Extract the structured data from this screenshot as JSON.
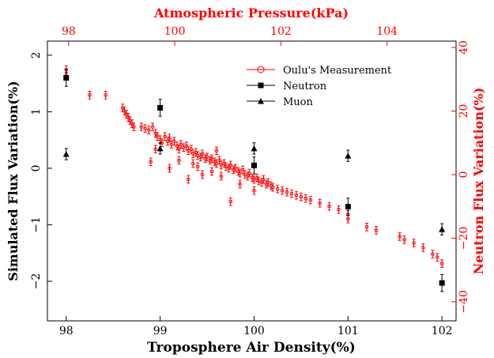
{
  "chart_data": {
    "type": "scatter",
    "title": "",
    "xlabel": "Troposphere Air Density(%)",
    "ylabel": "Simulated Flux Variation(%)",
    "x2label": "Atmospheric Pressure(kPa)",
    "y2label": "Neutron Flux Variation(%)",
    "xlim": [
      97.8,
      102.15
    ],
    "ylim": [
      -2.7,
      2.25
    ],
    "x2lim": [
      97.6,
      105.3
    ],
    "y2lim": [
      -46,
      42
    ],
    "x_ticks": [
      "98",
      "99",
      "100",
      "101",
      "102"
    ],
    "y_ticks": [
      "2",
      "1",
      "0",
      "−1",
      "−2"
    ],
    "x2_ticks": [
      "98",
      "100",
      "102",
      "104"
    ],
    "y2_ticks": [
      "40",
      "20",
      "0",
      "−20",
      "−40"
    ],
    "legend_position": "top-right",
    "grid": false,
    "colors": {
      "oulu": "#ff0000",
      "sim": "#000000"
    },
    "series": [
      {
        "name": "Oulu's Measurement",
        "axis": "secondary",
        "marker": "open-circle",
        "error": 1.2,
        "points": [
          [
            98.0,
            33.0
          ],
          [
            98.0,
            31.0
          ],
          [
            98.25,
            25.0
          ],
          [
            98.42,
            25.0
          ],
          [
            98.6,
            21.0
          ],
          [
            98.62,
            20.0
          ],
          [
            98.64,
            19.0
          ],
          [
            98.66,
            18.0
          ],
          [
            98.68,
            17.0
          ],
          [
            98.7,
            16.0
          ],
          [
            98.72,
            15.0
          ],
          [
            98.8,
            15.0
          ],
          [
            98.84,
            14.5
          ],
          [
            98.88,
            14.0
          ],
          [
            98.92,
            15.0
          ],
          [
            98.95,
            13.0
          ],
          [
            98.97,
            12.0
          ],
          [
            99.0,
            11.0
          ],
          [
            99.02,
            10.0
          ],
          [
            99.05,
            12.0
          ],
          [
            99.08,
            10.5
          ],
          [
            99.1,
            11.5
          ],
          [
            99.12,
            9.5
          ],
          [
            99.15,
            10.5
          ],
          [
            99.18,
            9.0
          ],
          [
            99.2,
            8.0
          ],
          [
            99.22,
            9.5
          ],
          [
            99.25,
            8.5
          ],
          [
            99.28,
            9.0
          ],
          [
            99.3,
            7.5
          ],
          [
            99.33,
            8.0
          ],
          [
            99.35,
            6.5
          ],
          [
            99.38,
            7.0
          ],
          [
            99.4,
            6.0
          ],
          [
            99.43,
            5.5
          ],
          [
            99.45,
            6.5
          ],
          [
            99.48,
            5.0
          ],
          [
            99.5,
            5.5
          ],
          [
            99.53,
            4.5
          ],
          [
            99.55,
            5.0
          ],
          [
            99.58,
            4.0
          ],
          [
            99.6,
            3.5
          ],
          [
            99.63,
            4.5
          ],
          [
            99.65,
            3.0
          ],
          [
            99.68,
            3.5
          ],
          [
            99.7,
            2.5
          ],
          [
            99.73,
            2.0
          ],
          [
            99.75,
            3.0
          ],
          [
            99.78,
            1.5
          ],
          [
            99.8,
            2.0
          ],
          [
            99.83,
            1.0
          ],
          [
            99.85,
            0.5
          ],
          [
            99.88,
            1.5
          ],
          [
            99.9,
            0.0
          ],
          [
            99.93,
            -0.5
          ],
          [
            99.95,
            0.5
          ],
          [
            99.98,
            -1.0
          ],
          [
            100.0,
            -1.5
          ],
          [
            100.03,
            -1.0
          ],
          [
            100.05,
            -2.0
          ],
          [
            100.08,
            -2.5
          ],
          [
            100.1,
            -1.5
          ],
          [
            100.13,
            -3.0
          ],
          [
            100.15,
            -2.5
          ],
          [
            100.18,
            -3.5
          ],
          [
            100.2,
            -4.0
          ],
          [
            100.25,
            -4.5
          ],
          [
            100.3,
            -5.0
          ],
          [
            100.35,
            -5.5
          ],
          [
            100.4,
            -6.0
          ],
          [
            100.45,
            -6.5
          ],
          [
            100.5,
            -7.0
          ],
          [
            100.55,
            -7.5
          ],
          [
            100.6,
            -8.0
          ],
          [
            100.7,
            -9.0
          ],
          [
            100.8,
            -10.0
          ],
          [
            100.9,
            -11.0
          ],
          [
            101.0,
            -14.0
          ],
          [
            101.0,
            -12.5
          ],
          [
            101.2,
            -16.5
          ],
          [
            101.3,
            -17.5
          ],
          [
            101.55,
            -19.5
          ],
          [
            101.6,
            -20.5
          ],
          [
            101.7,
            -21.5
          ],
          [
            101.8,
            -23.0
          ],
          [
            101.9,
            -25.0
          ],
          [
            101.95,
            -26.0
          ],
          [
            102.0,
            -28.0
          ],
          [
            98.9,
            4.0
          ],
          [
            99.35,
            3.5
          ],
          [
            99.55,
            1.0
          ],
          [
            99.75,
            -8.5
          ],
          [
            99.3,
            -1.5
          ],
          [
            99.1,
            2.0
          ],
          [
            99.65,
            -0.5
          ],
          [
            99.45,
            0.0
          ],
          [
            99.85,
            -3.0
          ],
          [
            100.0,
            -5.0
          ],
          [
            99.6,
            7.5
          ],
          [
            99.2,
            4.5
          ],
          [
            98.95,
            8.0
          ],
          [
            99.4,
            2.5
          ]
        ]
      },
      {
        "name": "Neutron",
        "axis": "primary",
        "marker": "filled-square",
        "error": 0.15,
        "points": [
          [
            98.0,
            1.6
          ],
          [
            99.0,
            1.07
          ],
          [
            100.0,
            0.05
          ],
          [
            101.0,
            -0.68
          ],
          [
            102.0,
            -2.03
          ]
        ]
      },
      {
        "name": "Muon",
        "axis": "primary",
        "marker": "filled-triangle",
        "error": 0.1,
        "points": [
          [
            98.0,
            0.25
          ],
          [
            99.0,
            0.35
          ],
          [
            100.0,
            0.35
          ],
          [
            101.0,
            0.22
          ],
          [
            102.0,
            -1.08
          ]
        ]
      }
    ]
  }
}
